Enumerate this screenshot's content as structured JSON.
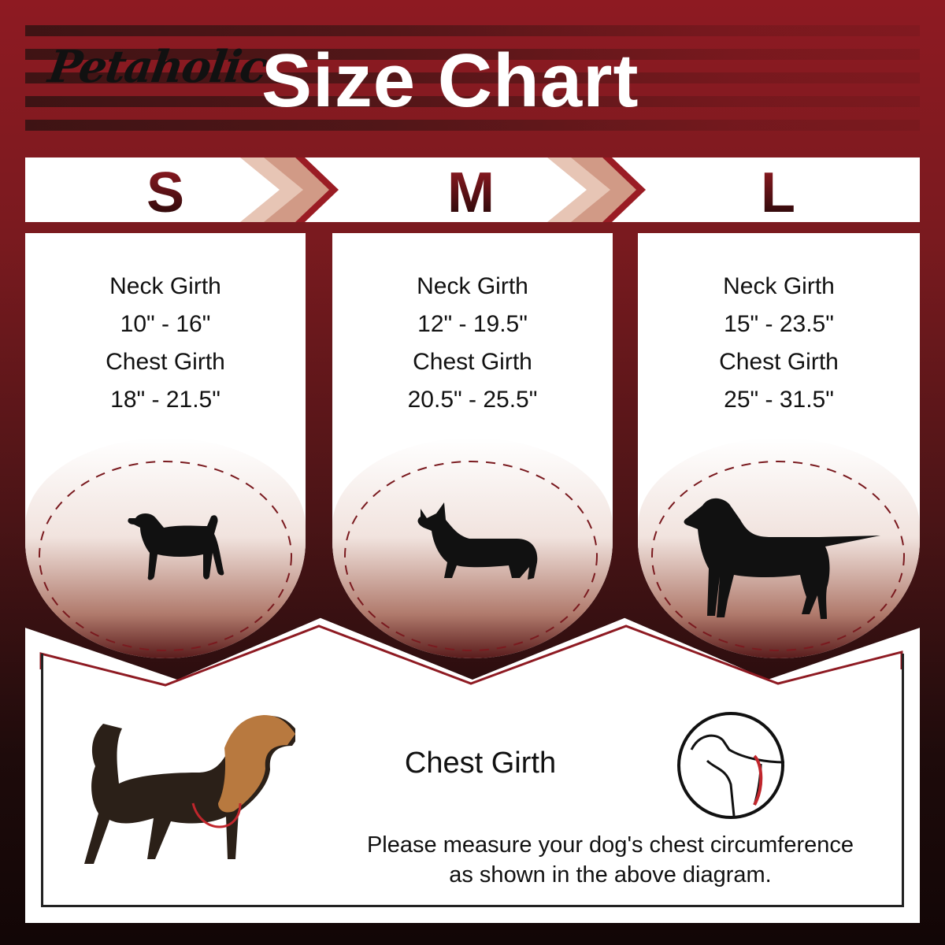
{
  "header": {
    "logo": "Petaholic",
    "title": "Size Chart"
  },
  "sizes": [
    {
      "label": "S",
      "neck_label": "Neck Girth",
      "neck": "10\" - 16\"",
      "chest_label": "Chest Girth",
      "chest": "18\" - 21.5\"",
      "dog_icon": "beagle-silhouette-icon"
    },
    {
      "label": "M",
      "neck_label": "Neck Girth",
      "neck": "12\" - 19.5\"",
      "chest_label": "Chest Girth",
      "chest": "20.5\" - 25.5\"",
      "dog_icon": "corgi-silhouette-icon"
    },
    {
      "label": "L",
      "neck_label": "Neck Girth",
      "neck": "15\" - 23.5\"",
      "chest_label": "Chest Girth",
      "chest": "25\" - 31.5\"",
      "dog_icon": "labrador-silhouette-icon"
    }
  ],
  "measure": {
    "title": "Chest Girth",
    "line1": "Please measure your dog's chest circumference",
    "line2": "as shown in the above diagram."
  },
  "colors": {
    "brand_red": "#8e1a22",
    "dark": "#1a0606",
    "measure_line": "#c0262c"
  }
}
